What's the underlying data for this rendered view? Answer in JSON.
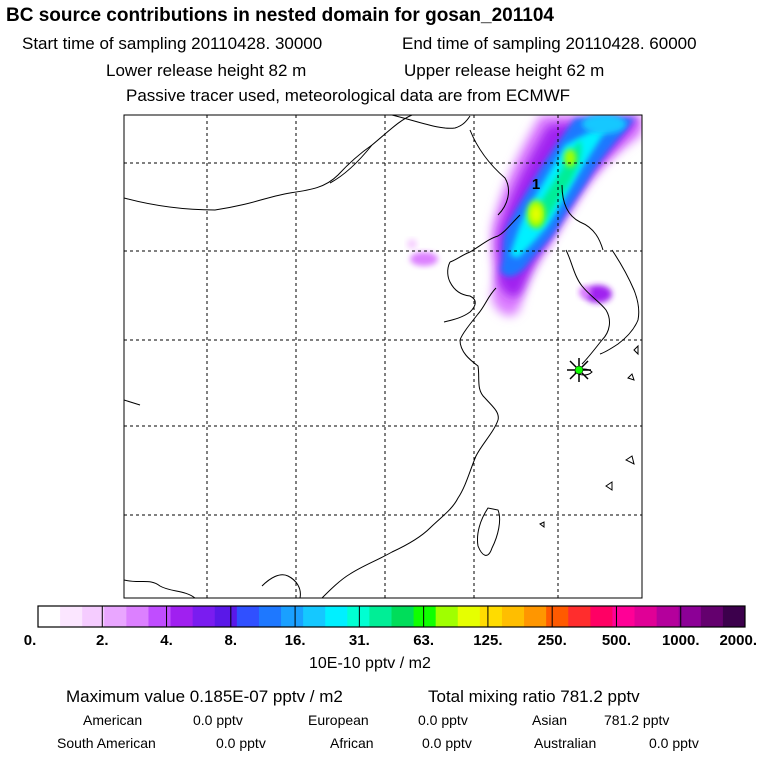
{
  "title": "BC  source contributions in nested domain for gosan_201104",
  "start_time": "Start time of sampling 20110428. 30000",
  "end_time": "End time of sampling 20110428. 60000",
  "lower_height": "Lower release height   82 m",
  "upper_height": "Upper release height   62 m",
  "tracer_note": "Passive tracer used, meteorological data are from ECMWF",
  "plume_label": "1",
  "colors": {
    "scale": [
      "#ffffff",
      "#fbe6ff",
      "#f5ccff",
      "#e9a6ff",
      "#dc80ff",
      "#c04dff",
      "#a020f0",
      "#7a1cf0",
      "#5a18e8",
      "#3050ff",
      "#1e78ff",
      "#1aa0ff",
      "#15c8ff",
      "#00f0ff",
      "#00ffd2",
      "#00ee96",
      "#00dd5a",
      "#10ff00",
      "#a0ff00",
      "#e6ff00",
      "#ffdc00",
      "#ffbe00",
      "#ff9600",
      "#ff5a00",
      "#ff2d2d",
      "#ff0064",
      "#ff0096",
      "#e00096",
      "#b4009c",
      "#8c0096",
      "#64006e",
      "#3c004c"
    ]
  },
  "chart_data": {
    "type": "heatmap",
    "title": "BC  source contributions in nested domain for gosan_201104",
    "colorbar": {
      "unit_label": "10E-10 pptv / m2",
      "tick_labels": [
        "0.",
        "2.",
        "4.",
        "8.",
        "16.",
        "31.",
        "63.",
        "125.",
        "250.",
        "500.",
        "1000.",
        "2000."
      ],
      "tick_values": [
        0,
        2,
        4,
        8,
        16,
        31,
        63,
        125,
        250,
        500,
        1000,
        2000
      ]
    },
    "receptor_marker": "star",
    "stats": {
      "maximum": "Maximum value  0.185E-07 pptv / m2",
      "total": "Total mixing ratio      781.2 pptv"
    },
    "regions": [
      {
        "name": "American",
        "value": "0.0 pptv"
      },
      {
        "name": "European",
        "value": "0.0 pptv"
      },
      {
        "name": "Asian",
        "value": "781.2 pptv"
      },
      {
        "name": "South American",
        "value": "0.0 pptv"
      },
      {
        "name": "African",
        "value": "0.0 pptv"
      },
      {
        "name": "Australian",
        "value": "0.0 pptv"
      }
    ]
  }
}
